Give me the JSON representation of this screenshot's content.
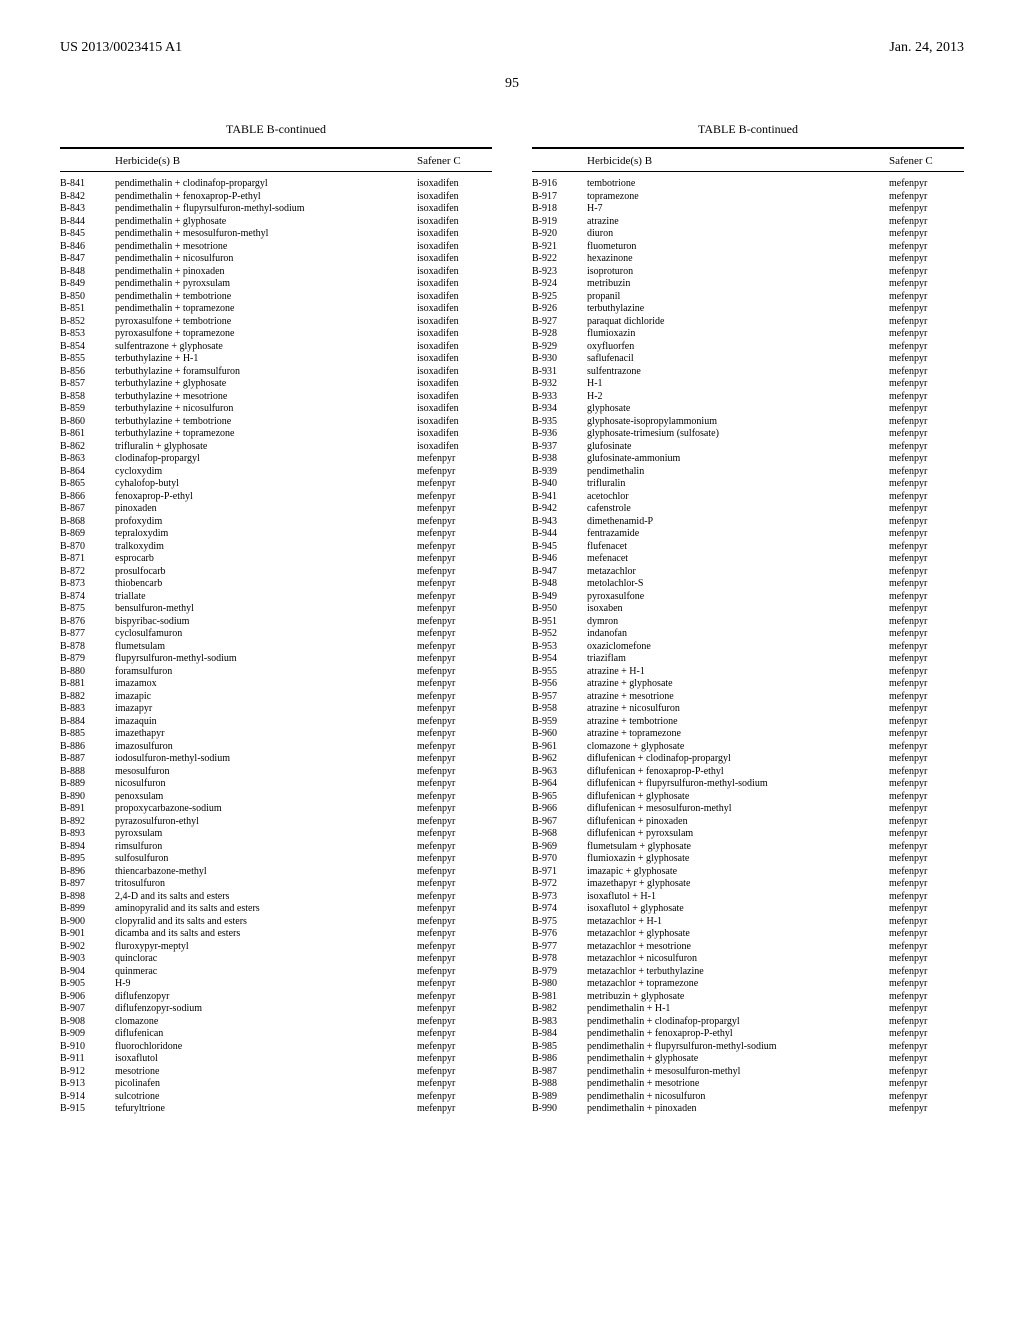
{
  "header": {
    "pub_number": "US 2013/0023415 A1",
    "pub_date": "Jan. 24, 2013"
  },
  "page_number": "95",
  "table_title": "TABLE B-continued",
  "column_headers": {
    "c1": "",
    "c2": "Herbicide(s) B",
    "c3": "Safener C"
  },
  "left_rows": [
    {
      "id": "B-841",
      "h": "pendimethalin + clodinafop-propargyl",
      "s": "isoxadifen"
    },
    {
      "id": "B-842",
      "h": "pendimethalin + fenoxaprop-P-ethyl",
      "s": "isoxadifen"
    },
    {
      "id": "B-843",
      "h": "pendimethalin + flupyrsulfuron-methyl-sodium",
      "s": "isoxadifen"
    },
    {
      "id": "B-844",
      "h": "pendimethalin + glyphosate",
      "s": "isoxadifen"
    },
    {
      "id": "B-845",
      "h": "pendimethalin + mesosulfuron-methyl",
      "s": "isoxadifen"
    },
    {
      "id": "B-846",
      "h": "pendimethalin + mesotrione",
      "s": "isoxadifen"
    },
    {
      "id": "B-847",
      "h": "pendimethalin + nicosulfuron",
      "s": "isoxadifen"
    },
    {
      "id": "B-848",
      "h": "pendimethalin + pinoxaden",
      "s": "isoxadifen"
    },
    {
      "id": "B-849",
      "h": "pendimethalin + pyroxsulam",
      "s": "isoxadifen"
    },
    {
      "id": "B-850",
      "h": "pendimethalin + tembotrione",
      "s": "isoxadifen"
    },
    {
      "id": "B-851",
      "h": "pendimethalin + topramezone",
      "s": "isoxadifen"
    },
    {
      "id": "B-852",
      "h": "pyroxasulfone + tembotrione",
      "s": "isoxadifen"
    },
    {
      "id": "B-853",
      "h": "pyroxasulfone + topramezone",
      "s": "isoxadifen"
    },
    {
      "id": "B-854",
      "h": "sulfentrazone + glyphosate",
      "s": "isoxadifen"
    },
    {
      "id": "B-855",
      "h": "terbuthylazine + H-1",
      "s": "isoxadifen"
    },
    {
      "id": "B-856",
      "h": "terbuthylazine + foramsulfuron",
      "s": "isoxadifen"
    },
    {
      "id": "B-857",
      "h": "terbuthylazine + glyphosate",
      "s": "isoxadifen"
    },
    {
      "id": "B-858",
      "h": "terbuthylazine + mesotrione",
      "s": "isoxadifen"
    },
    {
      "id": "B-859",
      "h": "terbuthylazine + nicosulfuron",
      "s": "isoxadifen"
    },
    {
      "id": "B-860",
      "h": "terbuthylazine + tembotrione",
      "s": "isoxadifen"
    },
    {
      "id": "B-861",
      "h": "terbuthylazine + topramezone",
      "s": "isoxadifen"
    },
    {
      "id": "B-862",
      "h": "trifluralin + glyphosate",
      "s": "isoxadifen"
    },
    {
      "id": "B-863",
      "h": "clodinafop-propargyl",
      "s": "mefenpyr"
    },
    {
      "id": "B-864",
      "h": "cycloxydim",
      "s": "mefenpyr"
    },
    {
      "id": "B-865",
      "h": "cyhalofop-butyl",
      "s": "mefenpyr"
    },
    {
      "id": "B-866",
      "h": "fenoxaprop-P-ethyl",
      "s": "mefenpyr"
    },
    {
      "id": "B-867",
      "h": "pinoxaden",
      "s": "mefenpyr"
    },
    {
      "id": "B-868",
      "h": "profoxydim",
      "s": "mefenpyr"
    },
    {
      "id": "B-869",
      "h": "tepraloxydim",
      "s": "mefenpyr"
    },
    {
      "id": "B-870",
      "h": "tralkoxydim",
      "s": "mefenpyr"
    },
    {
      "id": "B-871",
      "h": "esprocarb",
      "s": "mefenpyr"
    },
    {
      "id": "B-872",
      "h": "prosulfocarb",
      "s": "mefenpyr"
    },
    {
      "id": "B-873",
      "h": "thiobencarb",
      "s": "mefenpyr"
    },
    {
      "id": "B-874",
      "h": "triallate",
      "s": "mefenpyr"
    },
    {
      "id": "B-875",
      "h": "bensulfuron-methyl",
      "s": "mefenpyr"
    },
    {
      "id": "B-876",
      "h": "bispyribac-sodium",
      "s": "mefenpyr"
    },
    {
      "id": "B-877",
      "h": "cyclosulfamuron",
      "s": "mefenpyr"
    },
    {
      "id": "B-878",
      "h": "flumetsulam",
      "s": "mefenpyr"
    },
    {
      "id": "B-879",
      "h": "flupyrsulfuron-methyl-sodium",
      "s": "mefenpyr"
    },
    {
      "id": "B-880",
      "h": "foramsulfuron",
      "s": "mefenpyr"
    },
    {
      "id": "B-881",
      "h": "imazamox",
      "s": "mefenpyr"
    },
    {
      "id": "B-882",
      "h": "imazapic",
      "s": "mefenpyr"
    },
    {
      "id": "B-883",
      "h": "imazapyr",
      "s": "mefenpyr"
    },
    {
      "id": "B-884",
      "h": "imazaquin",
      "s": "mefenpyr"
    },
    {
      "id": "B-885",
      "h": "imazethapyr",
      "s": "mefenpyr"
    },
    {
      "id": "B-886",
      "h": "imazosulfuron",
      "s": "mefenpyr"
    },
    {
      "id": "B-887",
      "h": "iodosulfuron-methyl-sodium",
      "s": "mefenpyr"
    },
    {
      "id": "B-888",
      "h": "mesosulfuron",
      "s": "mefenpyr"
    },
    {
      "id": "B-889",
      "h": "nicosulfuron",
      "s": "mefenpyr"
    },
    {
      "id": "B-890",
      "h": "penoxsulam",
      "s": "mefenpyr"
    },
    {
      "id": "B-891",
      "h": "propoxycarbazone-sodium",
      "s": "mefenpyr"
    },
    {
      "id": "B-892",
      "h": "pyrazosulfuron-ethyl",
      "s": "mefenpyr"
    },
    {
      "id": "B-893",
      "h": "pyroxsulam",
      "s": "mefenpyr"
    },
    {
      "id": "B-894",
      "h": "rimsulfuron",
      "s": "mefenpyr"
    },
    {
      "id": "B-895",
      "h": "sulfosulfuron",
      "s": "mefenpyr"
    },
    {
      "id": "B-896",
      "h": "thiencarbazone-methyl",
      "s": "mefenpyr"
    },
    {
      "id": "B-897",
      "h": "tritosulfuron",
      "s": "mefenpyr"
    },
    {
      "id": "B-898",
      "h": "2,4-D and its salts and esters",
      "s": "mefenpyr"
    },
    {
      "id": "B-899",
      "h": "aminopyralid and its salts and esters",
      "s": "mefenpyr"
    },
    {
      "id": "B-900",
      "h": "clopyralid and its salts and esters",
      "s": "mefenpyr"
    },
    {
      "id": "B-901",
      "h": "dicamba and its salts and esters",
      "s": "mefenpyr"
    },
    {
      "id": "B-902",
      "h": "fluroxypyr-meptyl",
      "s": "mefenpyr"
    },
    {
      "id": "B-903",
      "h": "quinclorac",
      "s": "mefenpyr"
    },
    {
      "id": "B-904",
      "h": "quinmerac",
      "s": "mefenpyr"
    },
    {
      "id": "B-905",
      "h": "H-9",
      "s": "mefenpyr"
    },
    {
      "id": "B-906",
      "h": "diflufenzopyr",
      "s": "mefenpyr"
    },
    {
      "id": "B-907",
      "h": "diflufenzopyr-sodium",
      "s": "mefenpyr"
    },
    {
      "id": "B-908",
      "h": "clomazone",
      "s": "mefenpyr"
    },
    {
      "id": "B-909",
      "h": "diflufenican",
      "s": "mefenpyr"
    },
    {
      "id": "B-910",
      "h": "fluorochloridone",
      "s": "mefenpyr"
    },
    {
      "id": "B-911",
      "h": "isoxaflutol",
      "s": "mefenpyr"
    },
    {
      "id": "B-912",
      "h": "mesotrione",
      "s": "mefenpyr"
    },
    {
      "id": "B-913",
      "h": "picolinafen",
      "s": "mefenpyr"
    },
    {
      "id": "B-914",
      "h": "sulcotrione",
      "s": "mefenpyr"
    },
    {
      "id": "B-915",
      "h": "tefuryltrione",
      "s": "mefenpyr"
    }
  ],
  "right_rows": [
    {
      "id": "B-916",
      "h": "tembotrione",
      "s": "mefenpyr"
    },
    {
      "id": "B-917",
      "h": "topramezone",
      "s": "mefenpyr"
    },
    {
      "id": "B-918",
      "h": "H-7",
      "s": "mefenpyr"
    },
    {
      "id": "B-919",
      "h": "atrazine",
      "s": "mefenpyr"
    },
    {
      "id": "B-920",
      "h": "diuron",
      "s": "mefenpyr"
    },
    {
      "id": "B-921",
      "h": "fluometuron",
      "s": "mefenpyr"
    },
    {
      "id": "B-922",
      "h": "hexazinone",
      "s": "mefenpyr"
    },
    {
      "id": "B-923",
      "h": "isoproturon",
      "s": "mefenpyr"
    },
    {
      "id": "B-924",
      "h": "metribuzin",
      "s": "mefenpyr"
    },
    {
      "id": "B-925",
      "h": "propanil",
      "s": "mefenpyr"
    },
    {
      "id": "B-926",
      "h": "terbuthylazine",
      "s": "mefenpyr"
    },
    {
      "id": "B-927",
      "h": "paraquat dichloride",
      "s": "mefenpyr"
    },
    {
      "id": "B-928",
      "h": "flumioxazin",
      "s": "mefenpyr"
    },
    {
      "id": "B-929",
      "h": "oxyfluorfen",
      "s": "mefenpyr"
    },
    {
      "id": "B-930",
      "h": "saflufenacil",
      "s": "mefenpyr"
    },
    {
      "id": "B-931",
      "h": "sulfentrazone",
      "s": "mefenpyr"
    },
    {
      "id": "B-932",
      "h": "H-1",
      "s": "mefenpyr"
    },
    {
      "id": "B-933",
      "h": "H-2",
      "s": "mefenpyr"
    },
    {
      "id": "B-934",
      "h": "glyphosate",
      "s": "mefenpyr"
    },
    {
      "id": "B-935",
      "h": "glyphosate-isopropylammonium",
      "s": "mefenpyr"
    },
    {
      "id": "B-936",
      "h": "glyphosate-trimesium (sulfosate)",
      "s": "mefenpyr"
    },
    {
      "id": "B-937",
      "h": "glufosinate",
      "s": "mefenpyr"
    },
    {
      "id": "B-938",
      "h": "glufosinate-ammonium",
      "s": "mefenpyr"
    },
    {
      "id": "B-939",
      "h": "pendimethalin",
      "s": "mefenpyr"
    },
    {
      "id": "B-940",
      "h": "trifluralin",
      "s": "mefenpyr"
    },
    {
      "id": "B-941",
      "h": "acetochlor",
      "s": "mefenpyr"
    },
    {
      "id": "B-942",
      "h": "cafenstrole",
      "s": "mefenpyr"
    },
    {
      "id": "B-943",
      "h": "dimethenamid-P",
      "s": "mefenpyr"
    },
    {
      "id": "B-944",
      "h": "fentrazamide",
      "s": "mefenpyr"
    },
    {
      "id": "B-945",
      "h": "flufenacet",
      "s": "mefenpyr"
    },
    {
      "id": "B-946",
      "h": "mefenacet",
      "s": "mefenpyr"
    },
    {
      "id": "B-947",
      "h": "metazachlor",
      "s": "mefenpyr"
    },
    {
      "id": "B-948",
      "h": "metolachlor-S",
      "s": "mefenpyr"
    },
    {
      "id": "B-949",
      "h": "pyroxasulfone",
      "s": "mefenpyr"
    },
    {
      "id": "B-950",
      "h": "isoxaben",
      "s": "mefenpyr"
    },
    {
      "id": "B-951",
      "h": "dymron",
      "s": "mefenpyr"
    },
    {
      "id": "B-952",
      "h": "indanofan",
      "s": "mefenpyr"
    },
    {
      "id": "B-953",
      "h": "oxaziclomefone",
      "s": "mefenpyr"
    },
    {
      "id": "B-954",
      "h": "triaziflam",
      "s": "mefenpyr"
    },
    {
      "id": "B-955",
      "h": "atrazine + H-1",
      "s": "mefenpyr"
    },
    {
      "id": "B-956",
      "h": "atrazine + glyphosate",
      "s": "mefenpyr"
    },
    {
      "id": "B-957",
      "h": "atrazine + mesotrione",
      "s": "mefenpyr"
    },
    {
      "id": "B-958",
      "h": "atrazine + nicosulfuron",
      "s": "mefenpyr"
    },
    {
      "id": "B-959",
      "h": "atrazine + tembotrione",
      "s": "mefenpyr"
    },
    {
      "id": "B-960",
      "h": "atrazine + topramezone",
      "s": "mefenpyr"
    },
    {
      "id": "B-961",
      "h": "clomazone + glyphosate",
      "s": "mefenpyr"
    },
    {
      "id": "B-962",
      "h": "diflufenican + clodinafop-propargyl",
      "s": "mefenpyr"
    },
    {
      "id": "B-963",
      "h": "diflufenican + fenoxaprop-P-ethyl",
      "s": "mefenpyr"
    },
    {
      "id": "B-964",
      "h": "diflufenican + flupyrsulfuron-methyl-sodium",
      "s": "mefenpyr"
    },
    {
      "id": "B-965",
      "h": "diflufenican + glyphosate",
      "s": "mefenpyr"
    },
    {
      "id": "B-966",
      "h": "diflufenican + mesosulfuron-methyl",
      "s": "mefenpyr"
    },
    {
      "id": "B-967",
      "h": "diflufenican + pinoxaden",
      "s": "mefenpyr"
    },
    {
      "id": "B-968",
      "h": "diflufenican + pyroxsulam",
      "s": "mefenpyr"
    },
    {
      "id": "B-969",
      "h": "flumetsulam + glyphosate",
      "s": "mefenpyr"
    },
    {
      "id": "B-970",
      "h": "flumioxazin + glyphosate",
      "s": "mefenpyr"
    },
    {
      "id": "B-971",
      "h": "imazapic + glyphosate",
      "s": "mefenpyr"
    },
    {
      "id": "B-972",
      "h": "imazethapyr + glyphosate",
      "s": "mefenpyr"
    },
    {
      "id": "B-973",
      "h": "isoxaflutol + H-1",
      "s": "mefenpyr"
    },
    {
      "id": "B-974",
      "h": "isoxaflutol + glyphosate",
      "s": "mefenpyr"
    },
    {
      "id": "B-975",
      "h": "metazachlor + H-1",
      "s": "mefenpyr"
    },
    {
      "id": "B-976",
      "h": "metazachlor + glyphosate",
      "s": "mefenpyr"
    },
    {
      "id": "B-977",
      "h": "metazachlor + mesotrione",
      "s": "mefenpyr"
    },
    {
      "id": "B-978",
      "h": "metazachlor + nicosulfuron",
      "s": "mefenpyr"
    },
    {
      "id": "B-979",
      "h": "metazachlor + terbuthylazine",
      "s": "mefenpyr"
    },
    {
      "id": "B-980",
      "h": "metazachlor + topramezone",
      "s": "mefenpyr"
    },
    {
      "id": "B-981",
      "h": "metribuzin + glyphosate",
      "s": "mefenpyr"
    },
    {
      "id": "B-982",
      "h": "pendimethalin + H-1",
      "s": "mefenpyr"
    },
    {
      "id": "B-983",
      "h": "pendimethalin + clodinafop-propargyl",
      "s": "mefenpyr"
    },
    {
      "id": "B-984",
      "h": "pendimethalin + fenoxaprop-P-ethyl",
      "s": "mefenpyr"
    },
    {
      "id": "B-985",
      "h": "pendimethalin + flupyrsulfuron-methyl-sodium",
      "s": "mefenpyr"
    },
    {
      "id": "B-986",
      "h": "pendimethalin + glyphosate",
      "s": "mefenpyr"
    },
    {
      "id": "B-987",
      "h": "pendimethalin + mesosulfuron-methyl",
      "s": "mefenpyr"
    },
    {
      "id": "B-988",
      "h": "pendimethalin + mesotrione",
      "s": "mefenpyr"
    },
    {
      "id": "B-989",
      "h": "pendimethalin + nicosulfuron",
      "s": "mefenpyr"
    },
    {
      "id": "B-990",
      "h": "pendimethalin + pinoxaden",
      "s": "mefenpyr"
    }
  ]
}
